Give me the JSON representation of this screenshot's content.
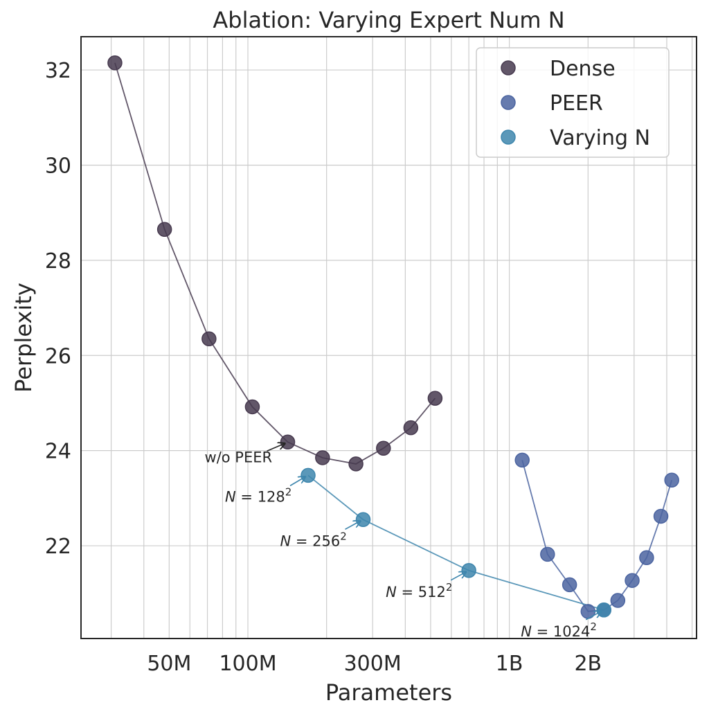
{
  "chart_data": {
    "type": "scatter",
    "title": "Ablation: Varying Expert Num N",
    "xlabel": "Parameters",
    "ylabel": "Perplexity",
    "xscale": "log",
    "xlim": [
      23000000,
      5200000000
    ],
    "ylim": [
      20.05,
      32.7
    ],
    "grid": true,
    "legend_position": "top-right",
    "x_ticks": [
      {
        "value": 50000000,
        "label": "50M"
      },
      {
        "value": 100000000,
        "label": "100M"
      },
      {
        "value": 300000000,
        "label": "300M"
      },
      {
        "value": 1000000000,
        "label": "1B"
      },
      {
        "value": 2000000000,
        "label": "2B"
      }
    ],
    "x_minor_ticks": [
      30000000,
      40000000,
      60000000,
      70000000,
      80000000,
      90000000,
      200000000,
      400000000,
      500000000,
      600000000,
      700000000,
      800000000,
      900000000,
      3000000000,
      4000000000,
      5000000000
    ],
    "y_ticks": [
      22,
      24,
      26,
      28,
      30,
      32
    ],
    "series": [
      {
        "name": "Dense",
        "color": "#473a4f",
        "x": [
          31000000,
          48000000,
          71000000,
          104000000,
          142000000,
          193000000,
          259000000,
          330000000,
          420000000,
          520000000
        ],
        "y": [
          32.15,
          28.65,
          26.35,
          24.92,
          24.18,
          23.85,
          23.72,
          24.05,
          24.48,
          25.1
        ]
      },
      {
        "name": "PEER",
        "color": "#4b64a0",
        "x": [
          1120000000,
          1400000000,
          1700000000,
          2000000000,
          2300000000,
          2600000000,
          2950000000,
          3350000000,
          3800000000,
          4180000000
        ],
        "y": [
          23.8,
          21.82,
          21.18,
          20.62,
          20.65,
          20.85,
          21.27,
          21.75,
          22.62,
          23.38
        ]
      },
      {
        "name": "Varying N",
        "color": "#3e86ad",
        "x": [
          170000000,
          276000000,
          700000000,
          2300000000
        ],
        "y": [
          23.48,
          22.55,
          21.48,
          20.65
        ]
      }
    ],
    "annotations": [
      {
        "text": "w/o PEER",
        "x": 142000000,
        "y": 24.18
      },
      {
        "text": "N = 128",
        "sup": "2",
        "x": 170000000,
        "y": 23.48
      },
      {
        "text": "N = 256",
        "sup": "2",
        "x": 276000000,
        "y": 22.55
      },
      {
        "text": "N = 512",
        "sup": "2",
        "x": 700000000,
        "y": 21.48
      },
      {
        "text": "N = 1024",
        "sup": "2",
        "x": 2300000000,
        "y": 20.65
      }
    ]
  }
}
